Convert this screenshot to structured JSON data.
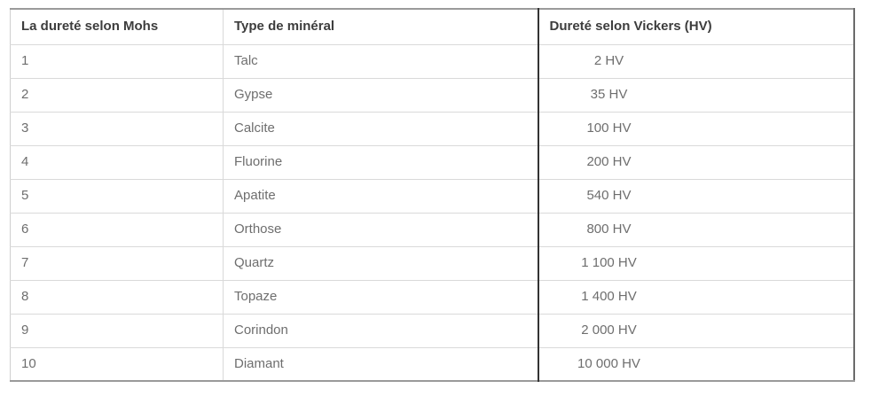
{
  "table": {
    "columns": [
      {
        "label": "La dureté selon Mohs"
      },
      {
        "label": "Type de minéral"
      },
      {
        "label": "Dureté selon Vickers (HV)"
      }
    ],
    "rows": [
      {
        "mohs": "1",
        "mineral": "Talc",
        "vickers": "2 HV"
      },
      {
        "mohs": "2",
        "mineral": "Gypse",
        "vickers": "35 HV"
      },
      {
        "mohs": "3",
        "mineral": "Calcite",
        "vickers": "100 HV"
      },
      {
        "mohs": "4",
        "mineral": "Fluorine",
        "vickers": "200 HV"
      },
      {
        "mohs": "5",
        "mineral": "Apatite",
        "vickers": "540 HV"
      },
      {
        "mohs": "6",
        "mineral": "Orthose",
        "vickers": "800 HV"
      },
      {
        "mohs": "7",
        "mineral": "Quartz",
        "vickers": "1 100 HV"
      },
      {
        "mohs": "8",
        "mineral": "Topaze",
        "vickers": "1 400 HV"
      },
      {
        "mohs": "9",
        "mineral": "Corindon",
        "vickers": "2 000 HV"
      },
      {
        "mohs": "10",
        "mineral": "Diamant",
        "vickers": "10 000 HV"
      }
    ]
  },
  "colors": {
    "page-bg": "#ffffff",
    "border-light": "#d9d9d9",
    "border-outer-h": "#9a9a9a",
    "border-outer-r": "#6b6b6b",
    "border-outer-l": "#cfcfcf",
    "border-dark": "#333333",
    "text-header": "#3d3d3d",
    "text-cell": "#6e6e6e"
  }
}
